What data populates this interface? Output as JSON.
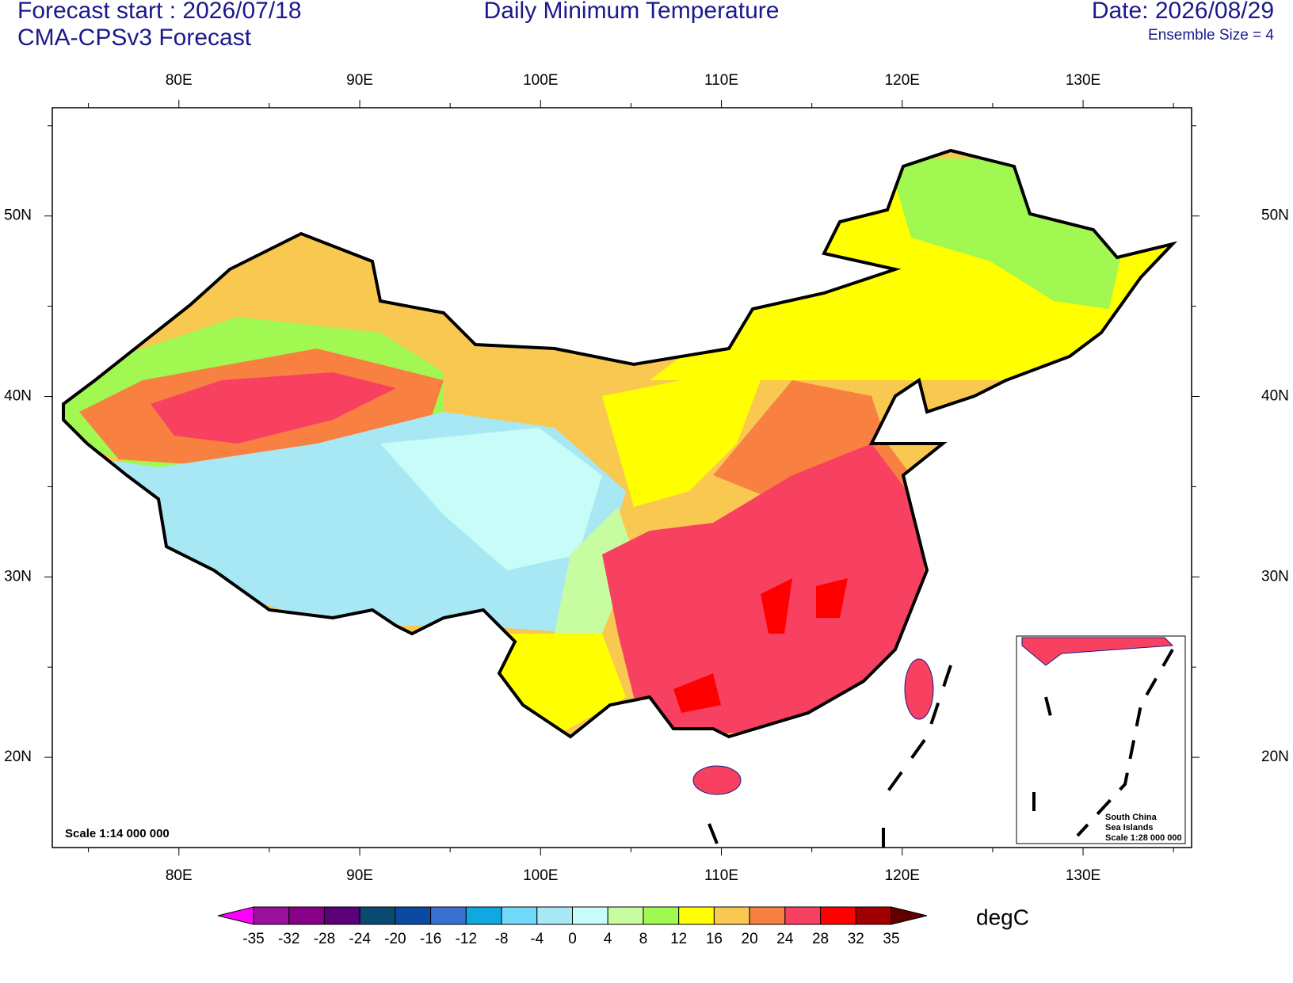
{
  "header": {
    "forecast_start": "Forecast start : 2026/07/18",
    "model": "CMA-CPSv3 Forecast",
    "title": "Daily Minimum Temperature",
    "date": "Date: 2026/08/29",
    "ensemble": "Ensemble Size = 4"
  },
  "map": {
    "lonlim": [
      73,
      136
    ],
    "latlim": [
      15,
      56
    ],
    "lon_ticks": [
      {
        "value": 80,
        "label": "80E"
      },
      {
        "value": 90,
        "label": "90E"
      },
      {
        "value": 100,
        "label": "100E"
      },
      {
        "value": 110,
        "label": "110E"
      },
      {
        "value": 120,
        "label": "120E"
      },
      {
        "value": 130,
        "label": "130E"
      }
    ],
    "lat_ticks": [
      {
        "value": 20,
        "label": "20N"
      },
      {
        "value": 30,
        "label": "30N"
      },
      {
        "value": 40,
        "label": "40N"
      },
      {
        "value": 50,
        "label": "50N"
      }
    ],
    "lon_minor_ticks": [
      75,
      85,
      95,
      105,
      115,
      125,
      135
    ],
    "lat_minor_ticks": [
      25,
      35,
      45,
      55
    ],
    "scale": "Scale 1:14 000 000",
    "inset": [
      "South China",
      "Sea Islands",
      "Scale 1:28 000 000"
    ]
  },
  "colorbar": {
    "unit": "degC",
    "levels": [
      -35,
      -32,
      -28,
      -24,
      -20,
      -16,
      -12,
      -8,
      -4,
      0,
      4,
      8,
      12,
      16,
      20,
      24,
      28,
      32,
      35
    ],
    "colors": [
      "#ff00ff",
      "#9a109a",
      "#880088",
      "#5a0078",
      "#0a4a70",
      "#0a4aa0",
      "#3a70d0",
      "#10a8e0",
      "#70d8f8",
      "#a8e8f4",
      "#c8fcf8",
      "#c8fca0",
      "#a0f850",
      "#ffff00",
      "#f8c850",
      "#f88040",
      "#f84060",
      "#ff0000",
      "#a00000",
      "#600000"
    ]
  }
}
